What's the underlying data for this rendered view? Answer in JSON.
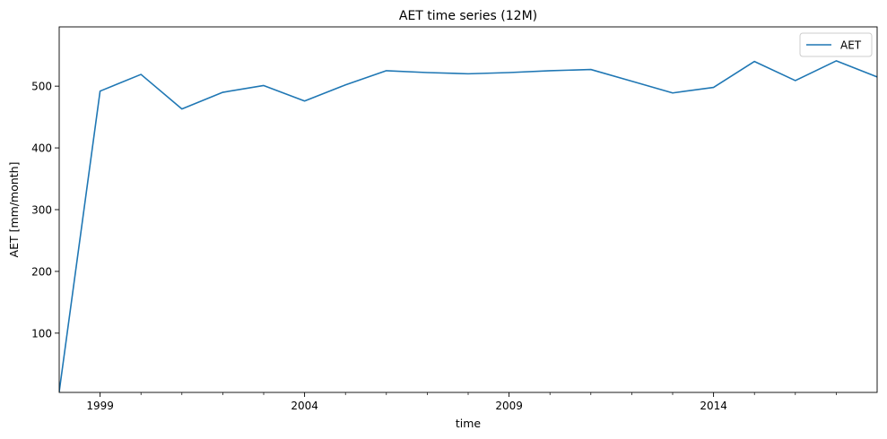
{
  "chart_data": {
    "type": "line",
    "title": "AET time series (12M)",
    "xlabel": "time",
    "ylabel": "AET [mm/month]",
    "xlim": [
      1998.0,
      2018.0
    ],
    "ylim": [
      4,
      596
    ],
    "x_ticks": [
      {
        "value": 1999,
        "label": "1999"
      },
      {
        "value": 2004,
        "label": "2004"
      },
      {
        "value": 2009,
        "label": "2009"
      },
      {
        "value": 2014,
        "label": "2014"
      }
    ],
    "x_minor_ticks": [
      2000,
      2001,
      2002,
      2003,
      2005,
      2006,
      2007,
      2008,
      2010,
      2011,
      2012,
      2013,
      2015,
      2016,
      2017
    ],
    "y_ticks": [
      {
        "value": 100,
        "label": "100"
      },
      {
        "value": 200,
        "label": "200"
      },
      {
        "value": 300,
        "label": "300"
      },
      {
        "value": 400,
        "label": "400"
      },
      {
        "value": 500,
        "label": "500"
      }
    ],
    "grid": false,
    "legend": {
      "position": "top-right",
      "entries": [
        "AET"
      ]
    },
    "series": [
      {
        "name": "AET",
        "color": "#1f77b4",
        "x": [
          1998,
          1999,
          2000,
          2001,
          2002,
          2003,
          2004,
          2005,
          2006,
          2007,
          2008,
          2009,
          2010,
          2011,
          2012,
          2013,
          2014,
          2015,
          2016,
          2017,
          2018
        ],
        "values": [
          5,
          492,
          519,
          463,
          490,
          501,
          476,
          502,
          525,
          522,
          520,
          522,
          525,
          527,
          508,
          489,
          498,
          540,
          509,
          541,
          515
        ]
      }
    ]
  }
}
